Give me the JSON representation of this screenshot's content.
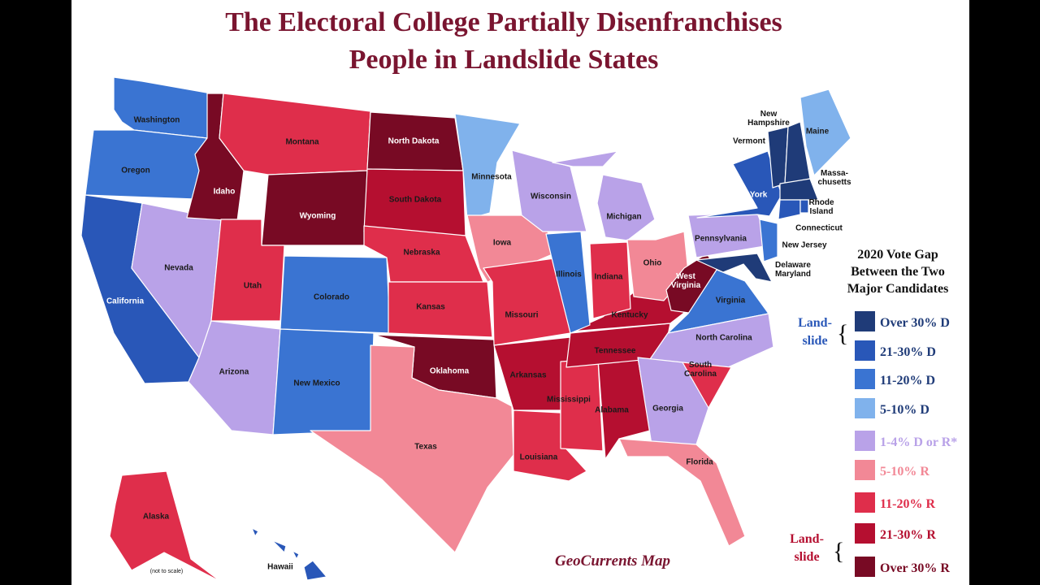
{
  "title": [
    "The Electoral College Partially Disenfranchises",
    "People in Landslide States"
  ],
  "credit": "GeoCurrents Map",
  "scale_note": "(not to scale)",
  "legend": {
    "title": [
      "2020 Vote Gap",
      "Between the Two",
      "Major Candidates"
    ],
    "items": [
      {
        "label": "Over 30% D",
        "color": "#1f3b78"
      },
      {
        "label": "21-30% D",
        "color": "#2957b8"
      },
      {
        "label": "11-20% D",
        "color": "#3a74d2"
      },
      {
        "label": "5-10% D",
        "color": "#80b2ec"
      },
      {
        "label": "1-4% D or R*",
        "color": "#b9a2e8"
      },
      {
        "label": "5-10% R",
        "color": "#f28896"
      },
      {
        "label": "11-20% R",
        "color": "#df2e4b"
      },
      {
        "label": "21-30% R",
        "color": "#b50f30"
      },
      {
        "label": "Over 30% R",
        "color": "#780a24"
      }
    ],
    "landslide_d": [
      "Land-",
      "slide"
    ],
    "landslide_r": [
      "Land-",
      "slide"
    ]
  },
  "states": [
    {
      "label": [
        "Washington"
      ],
      "category": 2
    },
    {
      "label": [
        "Oregon"
      ],
      "category": 2
    },
    {
      "label": [
        "California"
      ],
      "category": 1
    },
    {
      "label": [
        "Nevada"
      ],
      "category": 4
    },
    {
      "label": [
        "Idaho"
      ],
      "category": 8
    },
    {
      "label": [
        "Montana"
      ],
      "category": 6
    },
    {
      "label": [
        "Wyoming"
      ],
      "category": 8
    },
    {
      "label": [
        "Utah"
      ],
      "category": 6
    },
    {
      "label": [
        "Colorado"
      ],
      "category": 2
    },
    {
      "label": [
        "Arizona"
      ],
      "category": 4
    },
    {
      "label": [
        "New Mexico"
      ],
      "category": 2
    },
    {
      "label": [
        "North Dakota"
      ],
      "category": 8
    },
    {
      "label": [
        "South Dakota"
      ],
      "category": 7
    },
    {
      "label": [
        "Nebraska"
      ],
      "category": 6
    },
    {
      "label": [
        "Kansas"
      ],
      "category": 6
    },
    {
      "label": [
        "Oklahoma"
      ],
      "category": 8
    },
    {
      "label": [
        "Texas"
      ],
      "category": 5
    },
    {
      "label": [
        "Minnesota"
      ],
      "category": 3
    },
    {
      "label": [
        "Iowa"
      ],
      "category": 5
    },
    {
      "label": [
        "Missouri"
      ],
      "category": 6
    },
    {
      "label": [
        "Arkansas"
      ],
      "category": 7
    },
    {
      "label": [
        "Louisiana"
      ],
      "category": 6
    },
    {
      "label": [
        "Mississippi"
      ],
      "category": 6
    },
    {
      "label": [
        "Alabama"
      ],
      "category": 7
    },
    {
      "label": [
        "Tennessee"
      ],
      "category": 7
    },
    {
      "label": [
        "Kentucky"
      ],
      "category": 7
    },
    {
      "label": [
        "Illinois"
      ],
      "category": 2
    },
    {
      "label": [
        "Wisconsin"
      ],
      "category": 4
    },
    {
      "label": [
        "Michigan"
      ],
      "category": 4
    },
    {
      "label": [
        "Indiana"
      ],
      "category": 6
    },
    {
      "label": [
        "Ohio"
      ],
      "category": 5
    },
    {
      "label": [
        "West",
        "Virginia"
      ],
      "category": 8
    },
    {
      "label": [
        "Virginia"
      ],
      "category": 2
    },
    {
      "label": [
        "North Carolina"
      ],
      "category": 4
    },
    {
      "label": [
        "South",
        "Carolina"
      ],
      "category": 6
    },
    {
      "label": [
        "Georgia"
      ],
      "category": 4
    },
    {
      "label": [
        "Florida"
      ],
      "category": 5
    },
    {
      "label": [
        "Pennsylvania"
      ],
      "category": 4
    },
    {
      "label": [
        "New York"
      ],
      "category": 1
    },
    {
      "label": [
        "New Jersey"
      ],
      "category": 2
    },
    {
      "label": [
        "Delaware",
        "Maryland"
      ],
      "category": 0
    },
    {
      "label": [
        "Vermont"
      ],
      "category": 0
    },
    {
      "label": [
        "New",
        "Hampshire"
      ],
      "category": 0
    },
    {
      "label": [
        "Maine"
      ],
      "category": 3
    },
    {
      "label": [
        "Massa-",
        "chusetts"
      ],
      "category": 0
    },
    {
      "label": [
        "Connecticut"
      ],
      "category": 1
    },
    {
      "label": [
        "Rhode",
        "Island"
      ],
      "category": 1
    },
    {
      "label": [
        "Alaska"
      ],
      "category": 6
    },
    {
      "label": [
        "Hawaii"
      ],
      "category": 1
    }
  ]
}
